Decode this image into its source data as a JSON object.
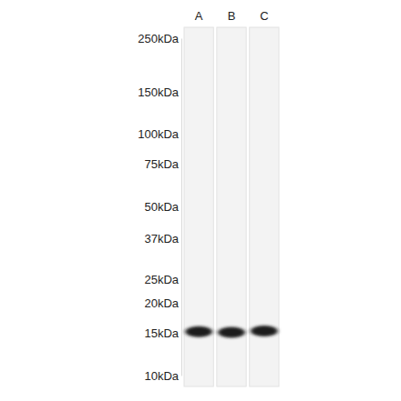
{
  "chart_data": {
    "type": "western_blot",
    "categories": [
      "A",
      "B",
      "C"
    ],
    "values": [
      15.2,
      15.1,
      15.3
    ],
    "log": "y",
    "ylim": [
      10,
      250
    ],
    "yticks": [
      {
        "value": 250,
        "label": "250kDa"
      },
      {
        "value": 150,
        "label": "150kDa"
      },
      {
        "value": 100,
        "label": "100kDa"
      },
      {
        "value": 75,
        "label": "75kDa"
      },
      {
        "value": 50,
        "label": "50kDa"
      },
      {
        "value": 37,
        "label": "37kDa"
      },
      {
        "value": 25,
        "label": "25kDa"
      },
      {
        "value": 20,
        "label": "20kDa"
      },
      {
        "value": 15,
        "label": "15kDa"
      },
      {
        "value": 10,
        "label": "10kDa"
      }
    ],
    "color": "#1a1a1a"
  }
}
